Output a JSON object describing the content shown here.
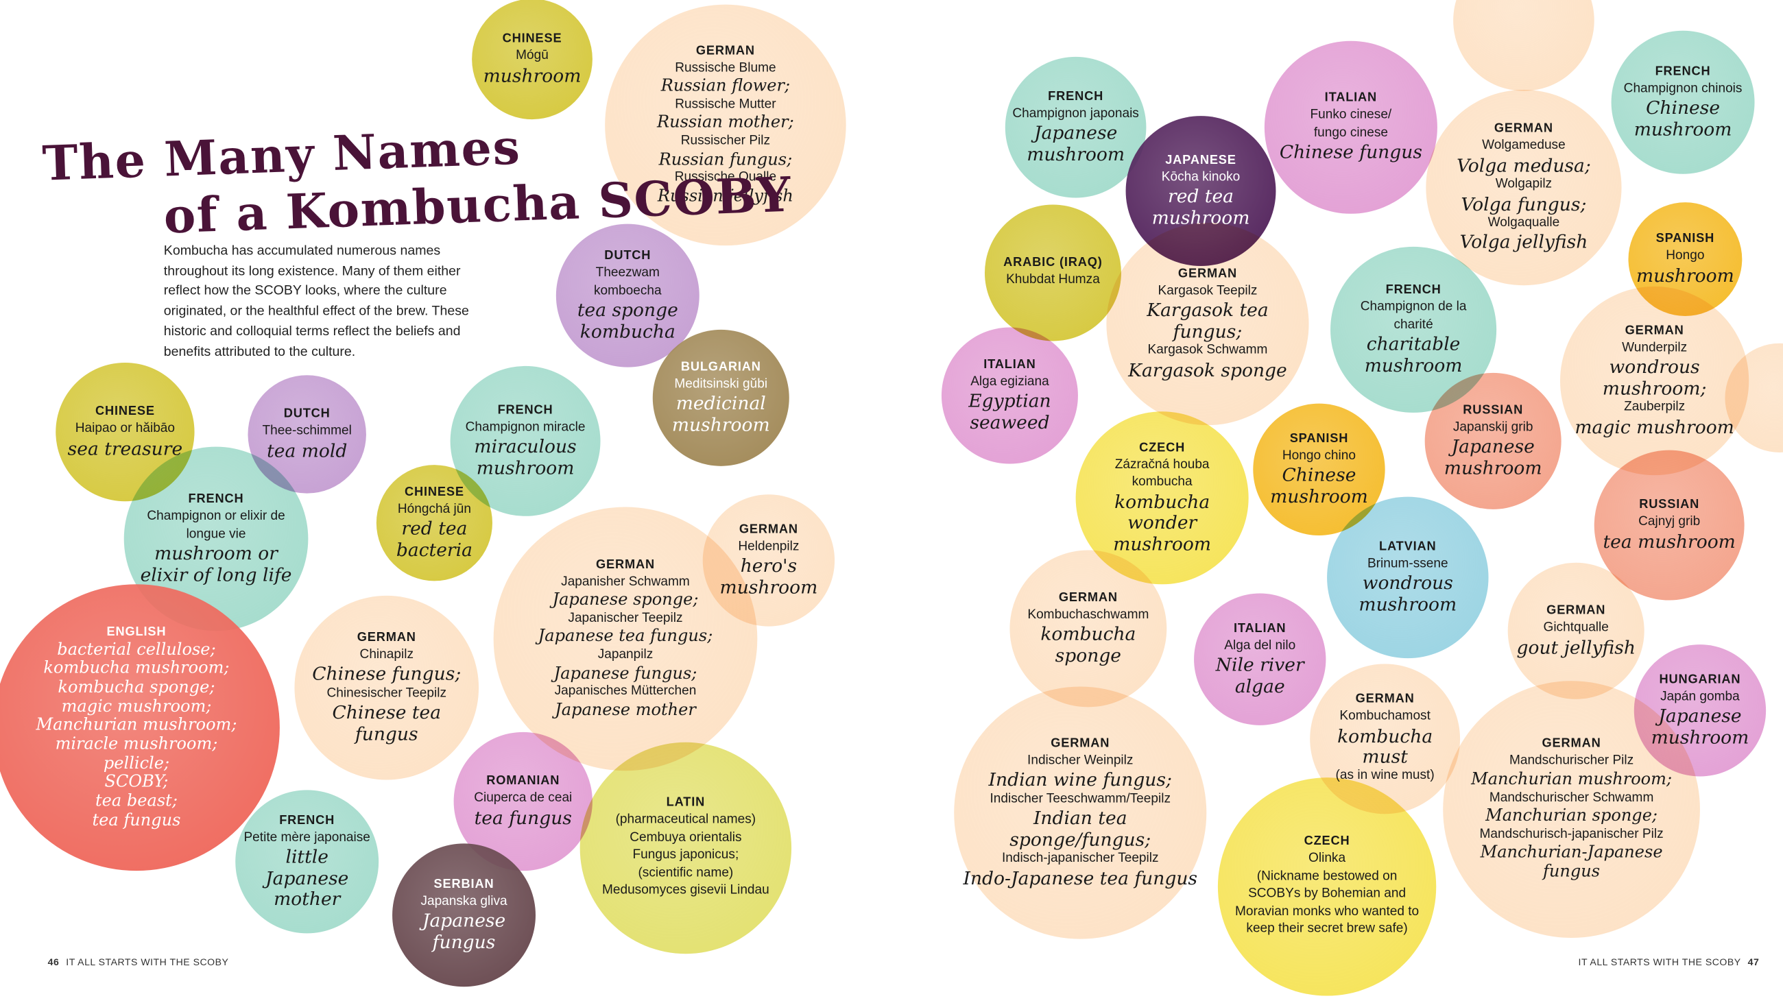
{
  "title": {
    "line1": "The Many Names",
    "line2": "of a Kombucha SCOBY"
  },
  "intro": "Kombucha has accumulated numerous names throughout its long existence. Many of them either reflect how the SCOBY looks, where the culture originated, or the healthful effect of the brew. These historic and colloquial terms reflect the beliefs and benefits attributed to the culture.",
  "footer_left": {
    "page": "46",
    "text": "IT ALL STARTS WITH THE SCOBY"
  },
  "footer_right": {
    "page": "47",
    "text": "IT ALL STARTS WITH THE SCOBY"
  },
  "colors": {
    "yellow_olive": "#d6c93f",
    "peach": "#fde2c6",
    "lavender": "#c6a0d3",
    "olive_brown": "#a38b5a",
    "mint": "#a5dccd",
    "coral": "#ef6b5f",
    "pink": "#e3a0d5",
    "lime": "#e3e170",
    "brown": "#6b4c52",
    "purple": "#56275f",
    "orange": "#f5bd2e",
    "salmon": "#f4a48c",
    "yellow": "#f6e45a",
    "light_blue": "#9bd4e3",
    "title": "#4a1338"
  },
  "bubbles": [
    {
      "lang": "CHINESE",
      "color": "yellow_olive",
      "lines": [
        {
          "text": "Mógū"
        },
        {
          "text": "mushroom",
          "style": "script"
        }
      ]
    },
    {
      "lang": "GERMAN",
      "color": "peach",
      "lines": [
        {
          "text": "Russische Blume"
        },
        {
          "text": "Russian flower;",
          "style": "script"
        },
        {
          "text": "Russische Mutter"
        },
        {
          "text": "Russian mother;",
          "style": "script"
        },
        {
          "text": "Russischer Pilz"
        },
        {
          "text": "Russian fungus;",
          "style": "script"
        },
        {
          "text": "Russische Qualle"
        },
        {
          "text": "Russian jellyfish",
          "style": "script"
        }
      ]
    },
    {
      "lang": "DUTCH",
      "color": "lavender",
      "lines": [
        {
          "text": "Theezwam"
        },
        {
          "text": "komboecha"
        },
        {
          "text": "tea sponge",
          "style": "script"
        },
        {
          "text": "kombucha",
          "style": "script"
        }
      ]
    },
    {
      "lang": "BULGARIAN",
      "color": "olive_brown",
      "light": true,
      "lines": [
        {
          "text": "Meditsinski gŭbi"
        },
        {
          "text": "medicinal",
          "style": "script"
        },
        {
          "text": "mushroom",
          "style": "script"
        }
      ]
    },
    {
      "lang": "CHINESE",
      "color": "yellow_olive",
      "lines": [
        {
          "text": "Haipao or hăibāo"
        },
        {
          "text": "sea treasure",
          "style": "script"
        }
      ]
    },
    {
      "lang": "DUTCH",
      "color": "lavender",
      "lines": [
        {
          "text": "Thee-schimmel"
        },
        {
          "text": "tea mold",
          "style": "script"
        }
      ]
    },
    {
      "lang": "FRENCH",
      "color": "mint",
      "lines": [
        {
          "text": "Champignon miracle"
        },
        {
          "text": "miraculous",
          "style": "script"
        },
        {
          "text": "mushroom",
          "style": "script"
        }
      ]
    },
    {
      "lang": "FRENCH",
      "color": "mint",
      "lines": [
        {
          "text": "Champignon or elixir de"
        },
        {
          "text": "longue vie"
        },
        {
          "text": "mushroom or",
          "style": "script"
        },
        {
          "text": "elixir of long life",
          "style": "script"
        }
      ]
    },
    {
      "lang": "CHINESE",
      "color": "yellow_olive",
      "lines": [
        {
          "text": "Hóngchá jūn"
        },
        {
          "text": "red tea",
          "style": "script"
        },
        {
          "text": "bacteria",
          "style": "script"
        }
      ]
    },
    {
      "lang": "GERMAN",
      "color": "peach",
      "lines": [
        {
          "text": "Heldenpilz"
        },
        {
          "text": "hero's",
          "style": "script"
        },
        {
          "text": "mushroom",
          "style": "script"
        }
      ]
    },
    {
      "lang": "GERMAN",
      "color": "peach",
      "lines": [
        {
          "text": "Japanisher Schwamm"
        },
        {
          "text": "Japanese sponge;",
          "style": "script"
        },
        {
          "text": "Japanischer Teepilz"
        },
        {
          "text": "Japanese tea fungus;",
          "style": "script"
        },
        {
          "text": "Japanpilz"
        },
        {
          "text": "Japanese fungus;",
          "style": "script"
        },
        {
          "text": "Japanisches Mütterchen"
        },
        {
          "text": "Japanese mother",
          "style": "script"
        }
      ]
    },
    {
      "lang": "ENGLISH",
      "color": "coral",
      "light": true,
      "lines": [
        {
          "text": "bacterial cellulose;",
          "style": "script"
        },
        {
          "text": "kombucha mushroom;",
          "style": "script"
        },
        {
          "text": "kombucha sponge;",
          "style": "script"
        },
        {
          "text": "magic mushroom;",
          "style": "script"
        },
        {
          "text": "Manchurian mushroom;",
          "style": "script"
        },
        {
          "text": "miracle mushroom;",
          "style": "script"
        },
        {
          "text": "pellicle;",
          "style": "script"
        },
        {
          "text": "SCOBY;",
          "style": "script"
        },
        {
          "text": "tea beast;",
          "style": "script"
        },
        {
          "text": "tea fungus",
          "style": "script"
        }
      ]
    },
    {
      "lang": "GERMAN",
      "color": "peach",
      "lines": [
        {
          "text": "Chinapilz"
        },
        {
          "text": "Chinese fungus;",
          "style": "script"
        },
        {
          "text": "Chinesischer Teepilz"
        },
        {
          "text": "Chinese tea fungus",
          "style": "script"
        }
      ]
    },
    {
      "lang": "FRENCH",
      "color": "mint",
      "lines": [
        {
          "text": "Petite mère japonaise"
        },
        {
          "text": "little Japanese",
          "style": "script"
        },
        {
          "text": "mother",
          "style": "script"
        }
      ]
    },
    {
      "lang": "ROMANIAN",
      "color": "pink",
      "lines": [
        {
          "text": "Ciuperca de ceai"
        },
        {
          "text": "tea fungus",
          "style": "script"
        }
      ]
    },
    {
      "lang": "LATIN",
      "color": "lime",
      "lines": [
        {
          "text": "(pharmaceutical names)"
        },
        {
          "text": "Cembuya orientalis"
        },
        {
          "text": "Fungus japonicus;"
        },
        {
          "text": " "
        },
        {
          "text": "(scientific name)"
        },
        {
          "text": "Medusomyces gisevii Lindau"
        }
      ]
    },
    {
      "lang": "SERBIAN",
      "color": "brown",
      "light": true,
      "lines": [
        {
          "text": "Japanska gliva"
        },
        {
          "text": "Japanese",
          "style": "script"
        },
        {
          "text": "fungus",
          "style": "script"
        }
      ]
    },
    {
      "lang": "",
      "color": "peach",
      "lines": []
    },
    {
      "lang": "FRENCH",
      "color": "mint",
      "lines": [
        {
          "text": "Champignon japonais"
        },
        {
          "text": "Japanese",
          "style": "script"
        },
        {
          "text": "mushroom",
          "style": "script"
        }
      ]
    },
    {
      "lang": "ITALIAN",
      "color": "pink",
      "lines": [
        {
          "text": "Funko cinese/"
        },
        {
          "text": "fungo cinese"
        },
        {
          "text": "Chinese fungus",
          "style": "script"
        }
      ]
    },
    {
      "lang": "JAPANESE",
      "color": "purple",
      "light": true,
      "lines": [
        {
          "text": "Kōcha kinoko"
        },
        {
          "text": "red tea",
          "style": "script"
        },
        {
          "text": "mushroom",
          "style": "script"
        }
      ]
    },
    {
      "lang": "FRENCH",
      "color": "mint",
      "lines": [
        {
          "text": "Champignon chinois"
        },
        {
          "text": "Chinese",
          "style": "script"
        },
        {
          "text": "mushroom",
          "style": "script"
        }
      ]
    },
    {
      "lang": "GERMAN",
      "color": "peach",
      "lines": [
        {
          "text": "Wolgameduse"
        },
        {
          "text": "Volga medusa;",
          "style": "script"
        },
        {
          "text": "Wolgapilz"
        },
        {
          "text": "Volga fungus;",
          "style": "script"
        },
        {
          "text": "Wolgaqualle"
        },
        {
          "text": "Volga jellyfish",
          "style": "script"
        }
      ]
    },
    {
      "lang": "ARABIC (IRAQ)",
      "color": "yellow_olive",
      "lines": [
        {
          "text": "Khubdat Humza"
        }
      ]
    },
    {
      "lang": "GERMAN",
      "color": "peach",
      "lines": [
        {
          "text": "Kargasok Teepilz"
        },
        {
          "text": "Kargasok tea fungus;",
          "style": "script"
        },
        {
          "text": "Kargasok Schwamm"
        },
        {
          "text": "Kargasok sponge",
          "style": "script"
        }
      ]
    },
    {
      "lang": "FRENCH",
      "color": "mint",
      "lines": [
        {
          "text": "Champignon de la"
        },
        {
          "text": "charité"
        },
        {
          "text": "charitable",
          "style": "script"
        },
        {
          "text": "mushroom",
          "style": "script"
        }
      ]
    },
    {
      "lang": "SPANISH",
      "color": "orange",
      "lines": [
        {
          "text": "Hongo"
        },
        {
          "text": "mushroom",
          "style": "script"
        }
      ]
    },
    {
      "lang": "ITALIAN",
      "color": "pink",
      "lines": [
        {
          "text": "Alga egiziana"
        },
        {
          "text": "Egyptian",
          "style": "script"
        },
        {
          "text": "seaweed",
          "style": "script"
        }
      ]
    },
    {
      "lang": "GERMAN",
      "color": "peach",
      "lines": [
        {
          "text": "Wunderpilz"
        },
        {
          "text": "wondrous",
          "style": "script"
        },
        {
          "text": "mushroom;",
          "style": "script"
        },
        {
          "text": "Zauberpilz"
        },
        {
          "text": "magic mushroom",
          "style": "script"
        }
      ]
    },
    {
      "lang": "",
      "color": "peach",
      "lines": []
    },
    {
      "lang": "RUSSIAN",
      "color": "salmon",
      "lines": [
        {
          "text": "Japanskij grib"
        },
        {
          "text": "Japanese",
          "style": "script"
        },
        {
          "text": "mushroom",
          "style": "script"
        }
      ]
    },
    {
      "lang": "CZECH",
      "color": "yellow",
      "lines": [
        {
          "text": "Zázračná houba"
        },
        {
          "text": "kombucha"
        },
        {
          "text": "kombucha",
          "style": "script"
        },
        {
          "text": "wonder",
          "style": "script"
        },
        {
          "text": "mushroom",
          "style": "script"
        }
      ]
    },
    {
      "lang": "SPANISH",
      "color": "orange",
      "lines": [
        {
          "text": "Hongo chino"
        },
        {
          "text": "Chinese",
          "style": "script"
        },
        {
          "text": "mushroom",
          "style": "script"
        }
      ]
    },
    {
      "lang": "LATVIAN",
      "color": "light_blue",
      "lines": [
        {
          "text": "Brinum-ssene"
        },
        {
          "text": "wondrous",
          "style": "script"
        },
        {
          "text": "mushroom",
          "style": "script"
        }
      ]
    },
    {
      "lang": "RUSSIAN",
      "color": "salmon",
      "lines": [
        {
          "text": "Cajnyj grib"
        },
        {
          "text": "tea mushroom",
          "style": "script"
        }
      ]
    },
    {
      "lang": "GERMAN",
      "color": "peach",
      "lines": [
        {
          "text": "Kombuchaschwamm"
        },
        {
          "text": "kombucha",
          "style": "script"
        },
        {
          "text": "sponge",
          "style": "script"
        }
      ]
    },
    {
      "lang": "GERMAN",
      "color": "peach",
      "lines": [
        {
          "text": "Gichtqualle"
        },
        {
          "text": "gout jellyfish",
          "style": "script"
        }
      ]
    },
    {
      "lang": "ITALIAN",
      "color": "pink",
      "lines": [
        {
          "text": "Alga del nilo"
        },
        {
          "text": "Nile river",
          "style": "script"
        },
        {
          "text": "algae",
          "style": "script"
        }
      ]
    },
    {
      "lang": "HUNGARIAN",
      "color": "pink",
      "lines": [
        {
          "text": "Japán gomba"
        },
        {
          "text": "Japanese",
          "style": "script"
        },
        {
          "text": "mushroom",
          "style": "script"
        }
      ]
    },
    {
      "lang": "GERMAN",
      "color": "peach",
      "lines": [
        {
          "text": "Kombuchamost"
        },
        {
          "text": "kombucha must",
          "style": "script"
        },
        {
          "text": "(as in wine must)"
        }
      ]
    },
    {
      "lang": "GERMAN",
      "color": "peach",
      "lines": [
        {
          "text": "Indischer Weinpilz"
        },
        {
          "text": "Indian wine fungus;",
          "style": "script"
        },
        {
          "text": "Indischer Teeschwamm/Teepilz"
        },
        {
          "text": "Indian tea sponge/fungus;",
          "style": "script"
        },
        {
          "text": "Indisch-japanischer Teepilz"
        },
        {
          "text": "Indo-Japanese tea fungus",
          "style": "script"
        }
      ]
    },
    {
      "lang": "GERMAN",
      "color": "peach",
      "lines": [
        {
          "text": "Mandschurischer Pilz"
        },
        {
          "text": "Manchurian mushroom;",
          "style": "script"
        },
        {
          "text": "Mandschurischer Schwamm"
        },
        {
          "text": "Manchurian sponge;",
          "style": "script"
        },
        {
          "text": "Mandschurisch-japanischer Pilz"
        },
        {
          "text": "Manchurian-Japanese",
          "style": "script"
        },
        {
          "text": "fungus",
          "style": "script"
        }
      ]
    },
    {
      "lang": "CZECH",
      "color": "yellow",
      "lines": [
        {
          "text": "Olinka"
        },
        {
          "text": "(Nickname bestowed on"
        },
        {
          "text": "SCOBYs by Bohemian and"
        },
        {
          "text": "Moravian monks who wanted to"
        },
        {
          "text": "keep their secret brew safe)"
        }
      ]
    }
  ]
}
